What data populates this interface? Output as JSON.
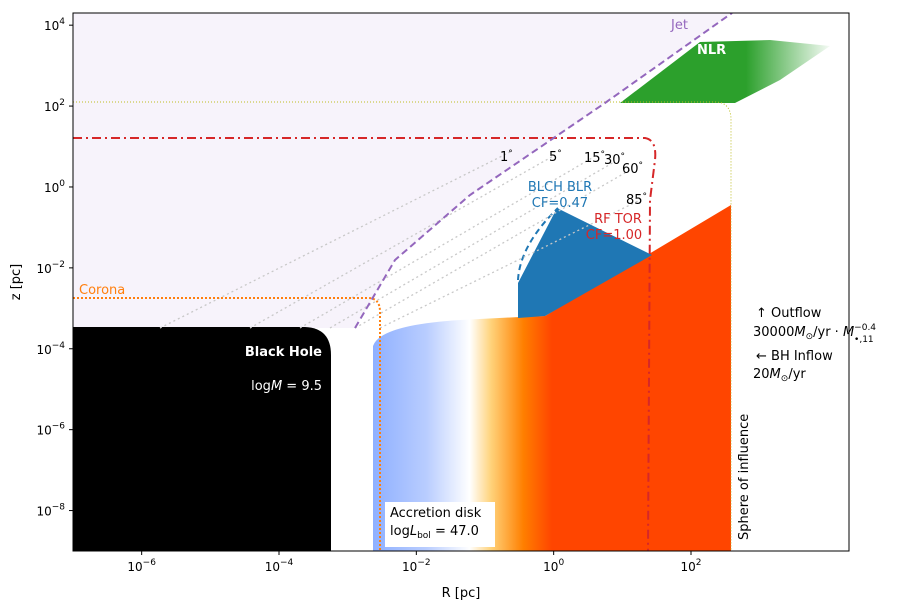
{
  "axes": {
    "xlabel": "R [pc]",
    "ylabel": "z [pc]",
    "x_ticks": [
      {
        "base": "10",
        "exp": "−6",
        "value": 1e-06
      },
      {
        "base": "10",
        "exp": "−4",
        "value": 0.0001
      },
      {
        "base": "10",
        "exp": "−2",
        "value": 0.01
      },
      {
        "base": "10",
        "exp": "0",
        "value": 1
      },
      {
        "base": "10",
        "exp": "2",
        "value": 100
      }
    ],
    "y_ticks": [
      {
        "base": "10",
        "exp": "4",
        "value": 10000.0
      },
      {
        "base": "10",
        "exp": "2",
        "value": 100
      },
      {
        "base": "10",
        "exp": "0",
        "value": 1
      },
      {
        "base": "10",
        "exp": "−2",
        "value": 0.01
      },
      {
        "base": "10",
        "exp": "−4",
        "value": 0.0001
      },
      {
        "base": "10",
        "exp": "−6",
        "value": 1e-06
      },
      {
        "base": "10",
        "exp": "−8",
        "value": 1e-08
      }
    ],
    "x_scale": "log",
    "y_scale": "log",
    "xlim": [
      1e-07,
      20000
    ],
    "ylim": [
      1e-09,
      20000
    ]
  },
  "labels": {
    "jet": "Jet",
    "nlr": "NLR",
    "corona": "Corona",
    "black_hole": "Black Hole",
    "black_hole_mass": {
      "pre": "log",
      "var": "M",
      "post": " = 9.5"
    },
    "blr_name": "BLCH BLR",
    "blr_cf": "CF=0.47",
    "tor_name": "RF TOR",
    "tor_cf": "CF=1.00",
    "disk_title": "Accretion disk",
    "disk_lum": {
      "pre": "log",
      "var": "L",
      "sub": "bol",
      "post": " = 47.0"
    },
    "sphere": "Sphere of influence",
    "outflow_line1": "↑  Outflow",
    "outflow_line2": {
      "rate": "30000",
      "var": "M",
      "sub1": "⊙",
      "unit": "/yr · ",
      "var2": "M",
      "sub2": "•,11",
      "exp": "−0.4"
    },
    "inflow_line1": "←  BH Inflow",
    "inflow_line2": {
      "rate": "20",
      "var": "M",
      "sub1": "⊙",
      "unit": "/yr"
    }
  },
  "angles": [
    "1",
    "5",
    "15",
    "30",
    "60",
    "85"
  ],
  "colors": {
    "jet": "#9467bd",
    "nlr": "#2ca02c",
    "corona": "#ff7f0e",
    "blr": "#1f77b4",
    "torus": "#d62728",
    "black_hole": "#000000",
    "outflow": "#ff4500",
    "disk_inner": "#8fb0ff",
    "sphere_line": "#bcbd22"
  }
}
